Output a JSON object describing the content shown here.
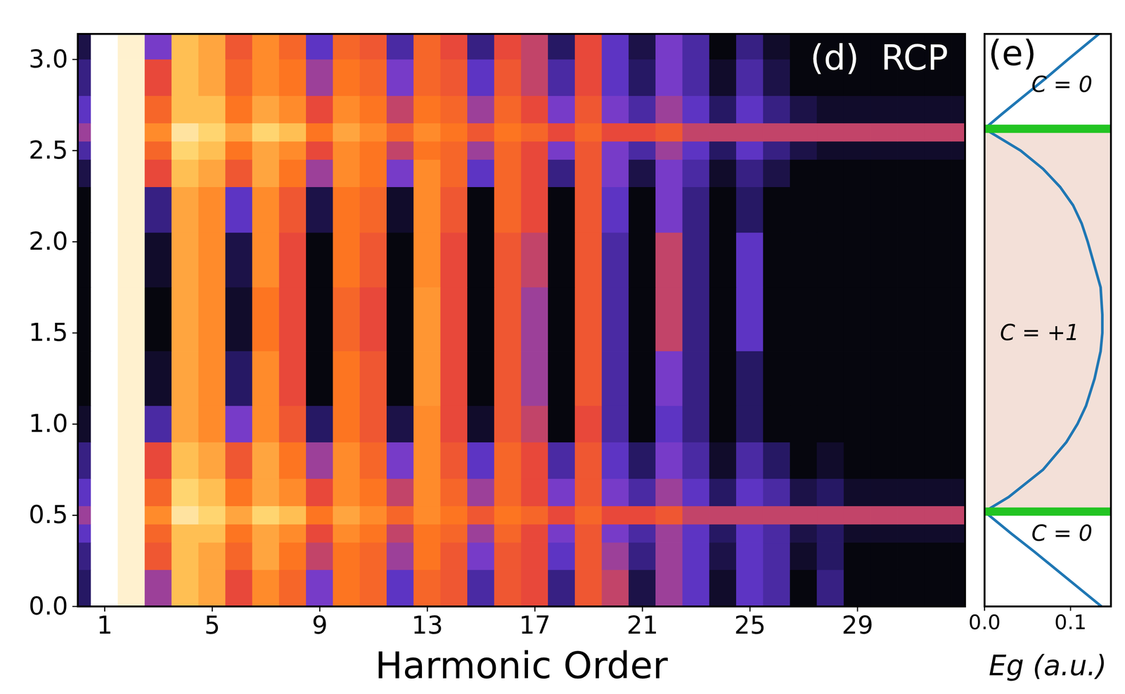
{
  "chart_data": [
    {
      "type": "heatmap",
      "title": "(d)  RCP",
      "xlabel": "Harmonic Order",
      "xlim": [
        0,
        33
      ],
      "ylim": [
        0,
        3.14
      ],
      "xticks": [
        1,
        5,
        9,
        13,
        17,
        21,
        25,
        29
      ],
      "yticks": [
        {
          "value": 0,
          "label": "0.0"
        },
        0.5,
        {
          "value": 1,
          "label": "1.0"
        },
        1.5,
        {
          "value": 2,
          "label": "2.0"
        },
        2.5,
        {
          "value": 3,
          "label": "3.0"
        }
      ],
      "zlim": [
        0,
        1
      ],
      "x_edges": [
        0,
        0.5,
        1.5,
        2.5,
        3.5,
        4.5,
        5.5,
        6.5,
        7.5,
        8.5,
        9.5,
        10.5,
        11.5,
        12.5,
        13.5,
        14.5,
        15.5,
        16.5,
        17.5,
        18.5,
        19.5,
        20.5,
        21.5,
        22.5,
        23.5,
        24.5,
        25.5,
        26.5,
        27.5,
        28.5,
        29.5,
        30.5,
        31.5,
        32.5,
        33
      ],
      "y_edges": [
        0,
        0.2,
        0.35,
        0.45,
        0.55,
        0.7,
        0.9,
        1.1,
        1.4,
        1.75,
        2.05,
        2.3,
        2.45,
        2.55,
        2.65,
        2.8,
        3.0,
        3.14
      ],
      "cells": [
        [
          0.15,
          1,
          0.95,
          0.4,
          0.8,
          0.75,
          0.5,
          0.7,
          0.6,
          0.35,
          0.65,
          0.6,
          0.3,
          0.6,
          0.55,
          0.25,
          0.55,
          0.5,
          0.2,
          0.55,
          0.45,
          0.1,
          0.4,
          0.3,
          0.05,
          0.3,
          0.25,
          0,
          0.2,
          0,
          0,
          0,
          0,
          0
        ],
        [
          0.2,
          1,
          0.95,
          0.55,
          0.8,
          0.75,
          0.6,
          0.75,
          0.65,
          0.45,
          0.65,
          0.6,
          0.4,
          0.65,
          0.55,
          0.35,
          0.55,
          0.5,
          0.3,
          0.55,
          0.4,
          0.2,
          0.4,
          0.3,
          0.1,
          0.3,
          0.25,
          0.05,
          0.15,
          0,
          0,
          0,
          0,
          0
        ],
        [
          0.3,
          1,
          0.95,
          0.6,
          0.8,
          0.8,
          0.65,
          0.75,
          0.7,
          0.5,
          0.7,
          0.65,
          0.45,
          0.65,
          0.6,
          0.4,
          0.6,
          0.5,
          0.35,
          0.55,
          0.35,
          0.25,
          0.4,
          0.3,
          0.15,
          0.3,
          0.25,
          0.1,
          0.15,
          0.05,
          0.05,
          0.05,
          0.05,
          0.05
        ],
        [
          0.4,
          1,
          0.95,
          0.7,
          0.9,
          0.85,
          0.75,
          0.85,
          0.8,
          0.65,
          0.75,
          0.7,
          0.6,
          0.7,
          0.65,
          0.55,
          0.65,
          0.6,
          0.5,
          0.6,
          0.5,
          0.5,
          0.55,
          0.45,
          0.45,
          0.45,
          0.45,
          0.45,
          0.45,
          0.45,
          0.45,
          0.45,
          0.45,
          0.45
        ],
        [
          0.3,
          1,
          0.95,
          0.6,
          0.85,
          0.8,
          0.65,
          0.75,
          0.7,
          0.5,
          0.7,
          0.65,
          0.45,
          0.7,
          0.6,
          0.4,
          0.6,
          0.5,
          0.35,
          0.55,
          0.35,
          0.25,
          0.4,
          0.3,
          0.15,
          0.3,
          0.25,
          0.1,
          0.15,
          0.05,
          0.05,
          0.05,
          0.05,
          0.05
        ],
        [
          0.2,
          1,
          0.95,
          0.5,
          0.8,
          0.75,
          0.55,
          0.75,
          0.65,
          0.4,
          0.7,
          0.6,
          0.35,
          0.7,
          0.55,
          0.3,
          0.6,
          0.5,
          0.25,
          0.55,
          0.3,
          0.15,
          0.35,
          0.25,
          0.05,
          0.25,
          0.15,
          0,
          0.05,
          0,
          0,
          0,
          0,
          0
        ],
        [
          0.05,
          1,
          0.95,
          0.25,
          0.75,
          0.7,
          0.35,
          0.7,
          0.55,
          0.15,
          0.65,
          0.55,
          0.1,
          0.7,
          0.5,
          0.05,
          0.55,
          0.45,
          0,
          0.5,
          0.25,
          0,
          0.3,
          0.2,
          0,
          0.15,
          0,
          0,
          0,
          0,
          0,
          0,
          0,
          0
        ],
        [
          0,
          1,
          0.95,
          0.05,
          0.75,
          0.7,
          0.15,
          0.7,
          0.5,
          0,
          0.65,
          0.55,
          0,
          0.72,
          0.5,
          0,
          0.55,
          0.4,
          0,
          0.55,
          0.25,
          0,
          0.35,
          0.2,
          0,
          0.15,
          0,
          0,
          0,
          0,
          0,
          0,
          0,
          0
        ],
        [
          0,
          1,
          0.95,
          0,
          0.75,
          0.7,
          0.05,
          0.65,
          0.5,
          0,
          0.6,
          0.5,
          0,
          0.72,
          0.5,
          0,
          0.55,
          0.4,
          0,
          0.55,
          0.25,
          0,
          0.45,
          0.2,
          0,
          0.3,
          0,
          0,
          0,
          0,
          0,
          0,
          0,
          0
        ],
        [
          0,
          1,
          0.95,
          0.05,
          0.75,
          0.7,
          0.1,
          0.7,
          0.5,
          0,
          0.65,
          0.55,
          0,
          0.7,
          0.5,
          0,
          0.55,
          0.45,
          0,
          0.55,
          0.25,
          0,
          0.45,
          0.2,
          0,
          0.3,
          0,
          0,
          0,
          0,
          0,
          0,
          0,
          0
        ],
        [
          0,
          1,
          0.95,
          0.2,
          0.75,
          0.7,
          0.3,
          0.7,
          0.55,
          0.1,
          0.65,
          0.6,
          0.05,
          0.7,
          0.55,
          0,
          0.6,
          0.5,
          0,
          0.55,
          0.3,
          0,
          0.35,
          0.2,
          0,
          0.15,
          0,
          0,
          0,
          0,
          0,
          0,
          0,
          0
        ],
        [
          0.1,
          1,
          0.95,
          0.5,
          0.8,
          0.75,
          0.55,
          0.75,
          0.65,
          0.4,
          0.7,
          0.65,
          0.35,
          0.7,
          0.6,
          0.3,
          0.6,
          0.5,
          0.2,
          0.55,
          0.35,
          0.1,
          0.35,
          0.25,
          0.05,
          0.2,
          0.1,
          0,
          0,
          0,
          0,
          0,
          0,
          0
        ],
        [
          0.25,
          1,
          0.95,
          0.6,
          0.85,
          0.8,
          0.65,
          0.75,
          0.7,
          0.5,
          0.7,
          0.65,
          0.45,
          0.65,
          0.6,
          0.4,
          0.6,
          0.5,
          0.35,
          0.55,
          0.35,
          0.25,
          0.4,
          0.3,
          0.15,
          0.3,
          0.2,
          0.1,
          0.05,
          0.05,
          0.05,
          0.05,
          0.05,
          0.05
        ],
        [
          0.4,
          1,
          0.95,
          0.7,
          0.9,
          0.85,
          0.75,
          0.85,
          0.8,
          0.65,
          0.75,
          0.7,
          0.6,
          0.7,
          0.65,
          0.55,
          0.65,
          0.6,
          0.5,
          0.6,
          0.5,
          0.5,
          0.55,
          0.45,
          0.45,
          0.45,
          0.45,
          0.45,
          0.45,
          0.45,
          0.45,
          0.45,
          0.45,
          0.45
        ],
        [
          0.3,
          1,
          0.95,
          0.6,
          0.8,
          0.8,
          0.65,
          0.75,
          0.7,
          0.5,
          0.7,
          0.65,
          0.45,
          0.65,
          0.6,
          0.4,
          0.6,
          0.5,
          0.35,
          0.55,
          0.35,
          0.25,
          0.4,
          0.3,
          0.15,
          0.3,
          0.2,
          0.1,
          0.05,
          0.05,
          0.05,
          0.05,
          0.05,
          0.05
        ],
        [
          0.2,
          1,
          0.95,
          0.5,
          0.8,
          0.75,
          0.6,
          0.7,
          0.65,
          0.4,
          0.65,
          0.6,
          0.35,
          0.6,
          0.55,
          0.3,
          0.55,
          0.45,
          0.25,
          0.5,
          0.3,
          0.15,
          0.35,
          0.25,
          0.05,
          0.25,
          0.1,
          0,
          0,
          0,
          0,
          0,
          0,
          0
        ],
        [
          0.1,
          1,
          0.95,
          0.35,
          0.8,
          0.75,
          0.55,
          0.7,
          0.6,
          0.3,
          0.6,
          0.55,
          0.25,
          0.6,
          0.5,
          0.2,
          0.5,
          0.45,
          0.15,
          0.5,
          0.3,
          0.1,
          0.35,
          0.25,
          0,
          0.2,
          0.05,
          0,
          0,
          0,
          0,
          0,
          0,
          0
        ]
      ]
    },
    {
      "type": "line",
      "title": "(e)",
      "xlabel": "Eg (a.u.)",
      "xlim": [
        0,
        0.147
      ],
      "ylim": [
        0,
        3.14
      ],
      "xticks": [
        {
          "value": 0,
          "label": "0.0"
        },
        0.1
      ],
      "tick_labels": "x",
      "color": "#1f77b4",
      "x": [
        0.136,
        0.11,
        0.084,
        0.058,
        0.031,
        0,
        0.028,
        0.068,
        0.095,
        0.108,
        0.118,
        0.128,
        0.135,
        0.137,
        0.137,
        0.135,
        0.126,
        0.12,
        0.113,
        0.103,
        0.088,
        0.068,
        0.042,
        0,
        0.02,
        0.046,
        0.072,
        0.097,
        0.133
      ],
      "y": [
        0,
        0.1,
        0.2,
        0.3,
        0.4,
        0.52,
        0.6,
        0.75,
        0.9,
        1.0,
        1.1,
        1.25,
        1.4,
        1.5,
        1.6,
        1.75,
        1.9,
        2.0,
        2.1,
        2.2,
        2.3,
        2.4,
        2.5,
        2.62,
        2.7,
        2.8,
        2.9,
        3.0,
        3.14
      ],
      "shaded_region": {
        "y_range": [
          0.52,
          2.62
        ],
        "color": "#f3e0d8"
      },
      "phase_boundaries": {
        "y": [
          0.52,
          2.62
        ],
        "color": "#22c422"
      },
      "annotations": [
        {
          "text": "C = 0",
          "x": 0.09,
          "y": 2.86
        },
        {
          "text": "C = +1",
          "x": 0.064,
          "y": 1.5
        },
        {
          "text": "C = 0",
          "x": 0.09,
          "y": 0.4
        }
      ]
    }
  ]
}
